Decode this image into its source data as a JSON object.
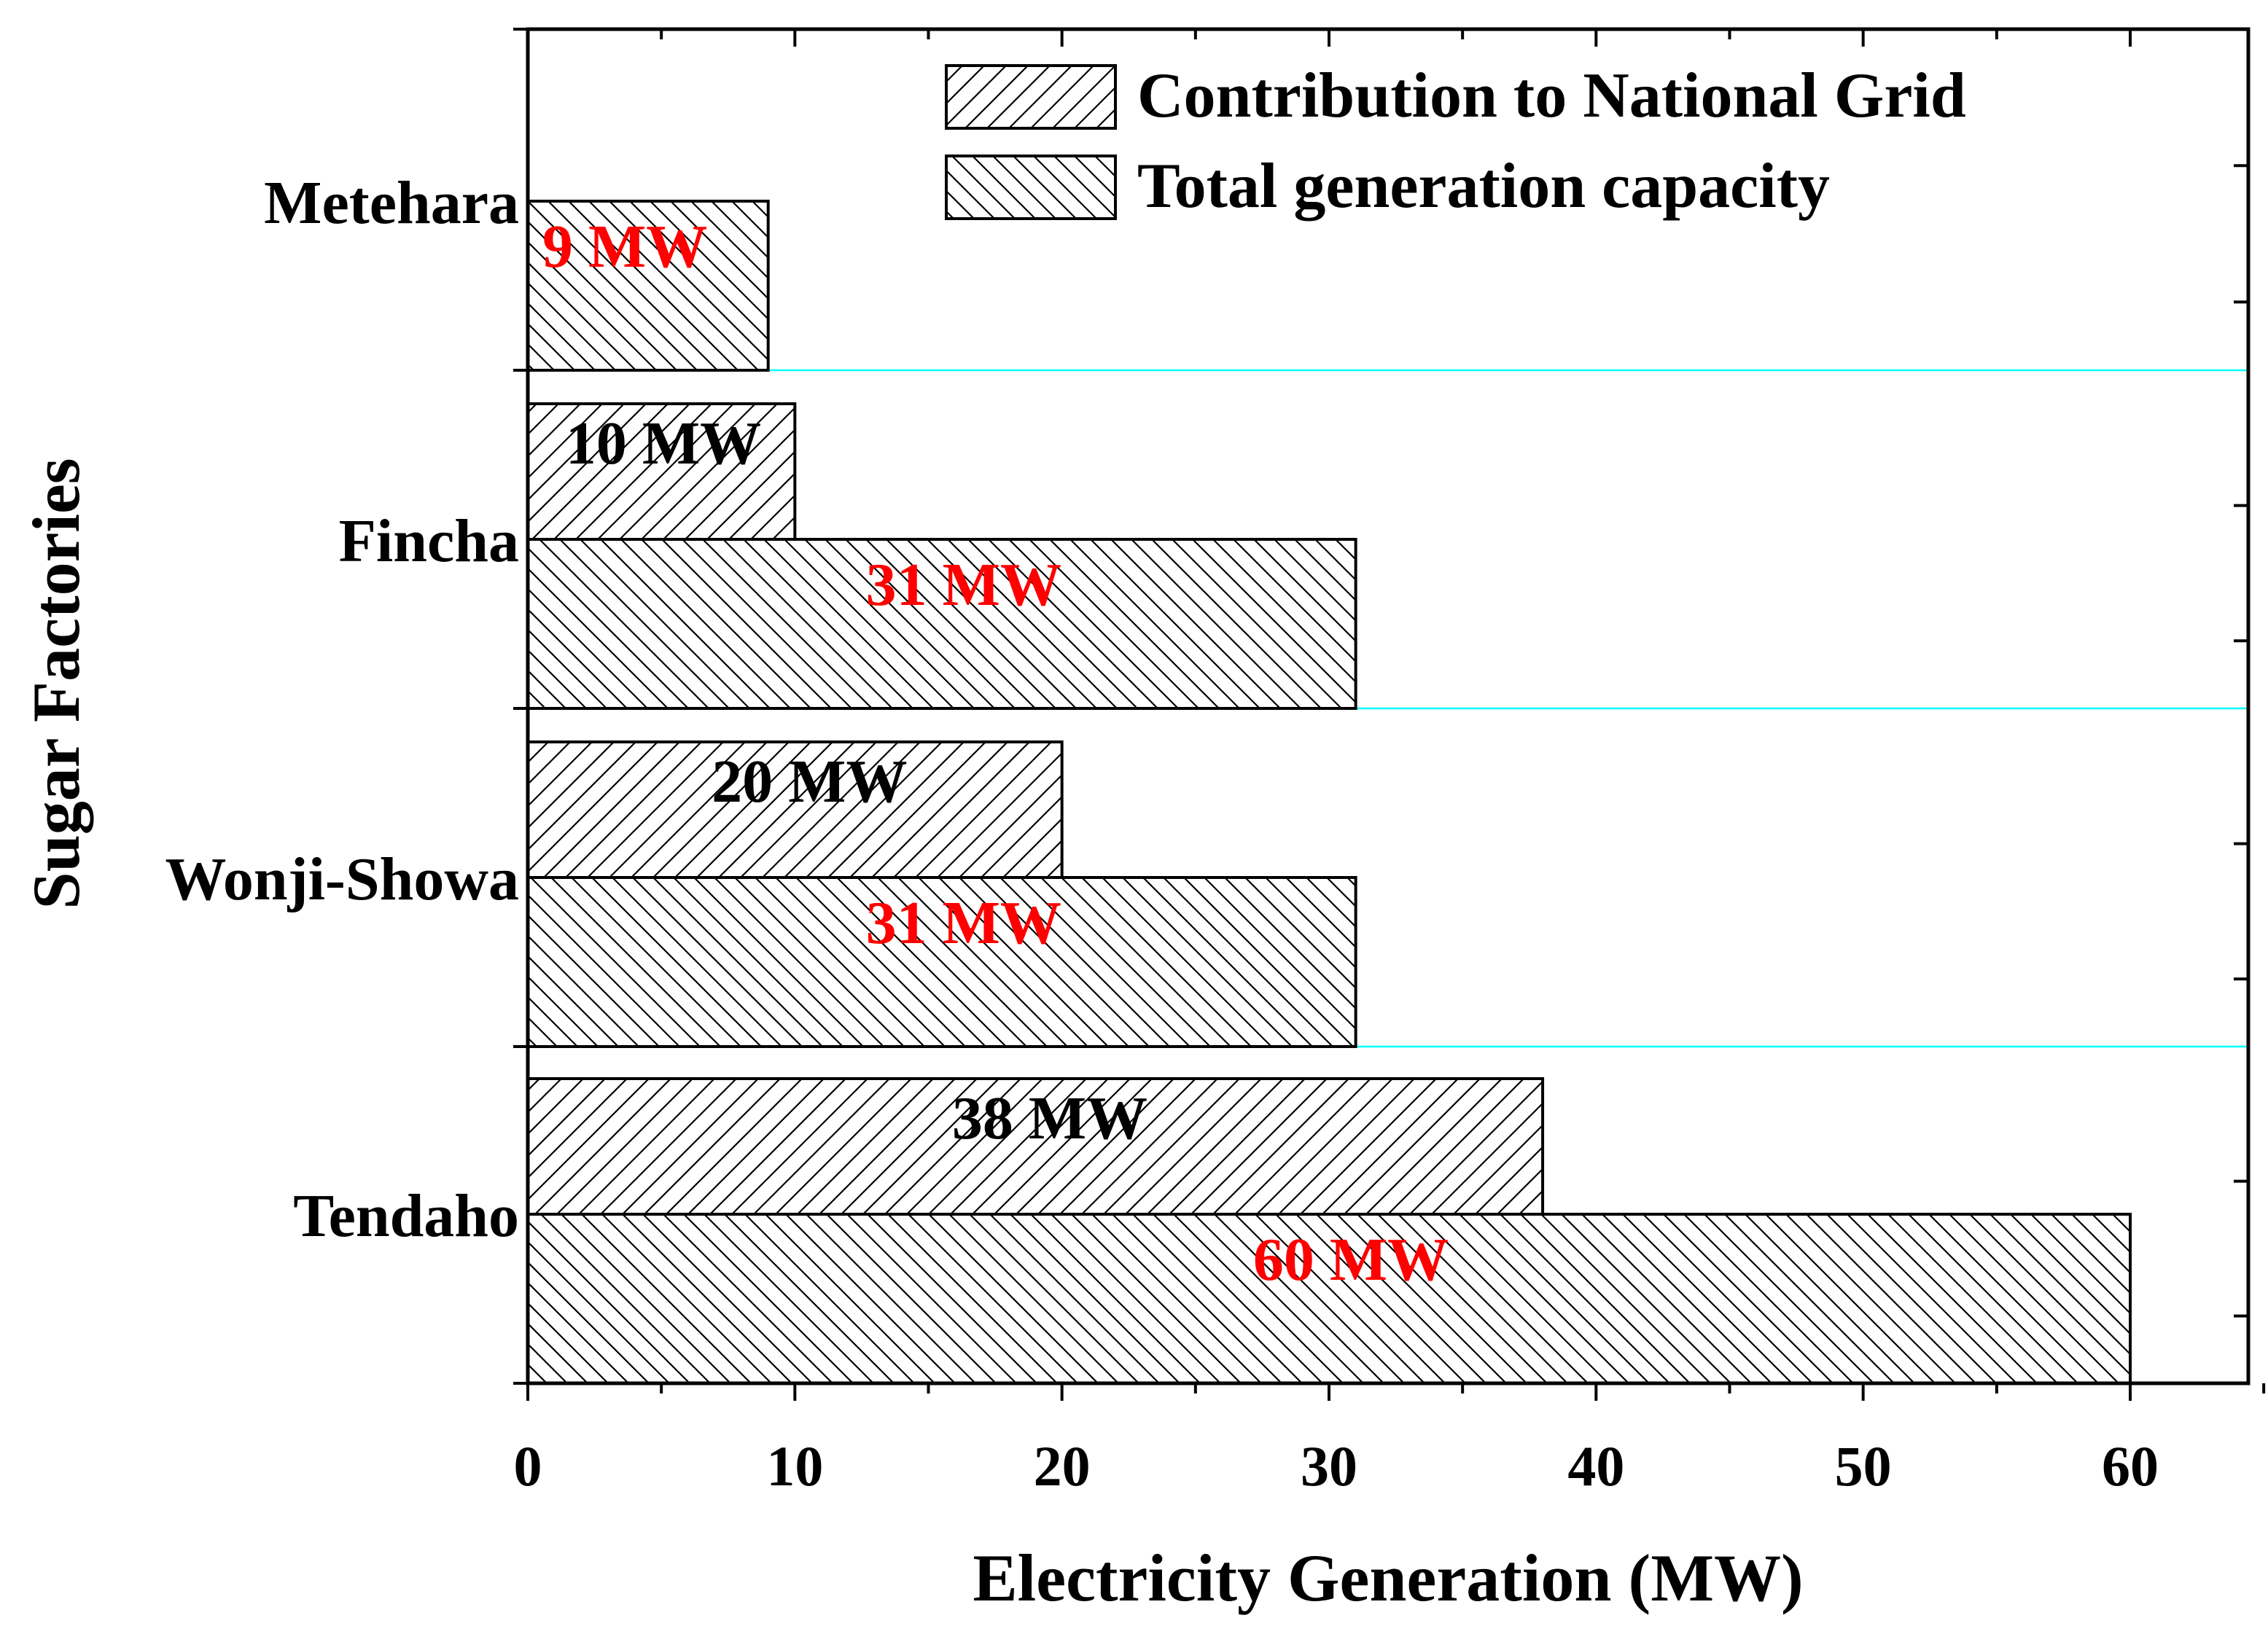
{
  "chart_data": {
    "type": "bar",
    "orientation": "horizontal",
    "title": "",
    "xlabel": "Electricity Generation (MW)",
    "ylabel": "Sugar Factories",
    "xlim": [
      0,
      65
    ],
    "xticks": [
      0,
      10,
      20,
      30,
      40,
      50,
      60
    ],
    "categories": [
      "Metehara",
      "Fincha",
      "Wonji-Showa",
      "Tendaho"
    ],
    "series": [
      {
        "name": "Contribution to National Grid",
        "pattern": "diagonal-forward",
        "label_color": "#000000",
        "values": [
          null,
          10,
          20,
          38
        ],
        "labels": [
          "",
          "10 MW",
          "20 MW",
          "38 MW"
        ]
      },
      {
        "name": "Total generation capacity",
        "pattern": "diagonal-backward",
        "label_color": "#ff0000",
        "values": [
          9,
          31,
          31,
          60
        ],
        "labels": [
          "9 MW",
          "31 MW",
          "31 MW",
          "60 MW"
        ]
      }
    ],
    "legend": {
      "position": "top-right"
    },
    "separator_color": "#00ffff"
  }
}
